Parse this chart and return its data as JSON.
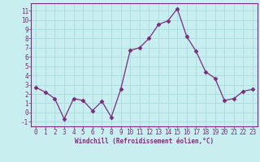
{
  "x": [
    0,
    1,
    2,
    3,
    4,
    5,
    6,
    7,
    8,
    9,
    10,
    11,
    12,
    13,
    14,
    15,
    16,
    17,
    18,
    19,
    20,
    21,
    22,
    23
  ],
  "y": [
    2.7,
    2.2,
    1.5,
    -0.7,
    1.5,
    1.3,
    0.2,
    1.2,
    -0.5,
    2.5,
    6.7,
    7.0,
    8.0,
    9.5,
    9.9,
    11.2,
    8.2,
    6.6,
    4.4,
    3.7,
    1.3,
    1.5,
    2.3,
    2.5
  ],
  "line_color": "#7a2c7a",
  "marker": "D",
  "marker_size": 2.5,
  "bg_color": "#c8eef0",
  "grid_color": "#aadddd",
  "xlabel": "Windchill (Refroidissement éolien,°C)",
  "ylim": [
    -1.5,
    11.8
  ],
  "xlim": [
    -0.5,
    23.5
  ],
  "yticks": [
    -1,
    0,
    1,
    2,
    3,
    4,
    5,
    6,
    7,
    8,
    9,
    10,
    11
  ],
  "xticks": [
    0,
    1,
    2,
    3,
    4,
    5,
    6,
    7,
    8,
    9,
    10,
    11,
    12,
    13,
    14,
    15,
    16,
    17,
    18,
    19,
    20,
    21,
    22,
    23
  ]
}
